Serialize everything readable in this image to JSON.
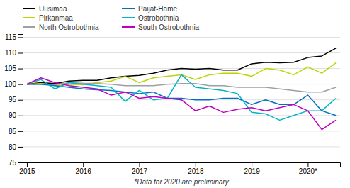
{
  "chart_data": {
    "type": "line",
    "categories": [
      "2015",
      null,
      null,
      null,
      "2016",
      null,
      null,
      null,
      "2017",
      null,
      null,
      null,
      "2018",
      null,
      null,
      null,
      "2019",
      null,
      null,
      null,
      "2020*",
      null,
      null
    ],
    "series": [
      {
        "name": "Uusimaa",
        "color": "#000000",
        "values": [
          100.0,
          100.5,
          100.2,
          101.0,
          101.2,
          101.2,
          102.0,
          102.5,
          102.8,
          103.5,
          104.5,
          105.0,
          104.8,
          105.0,
          104.5,
          104.5,
          106.5,
          107.0,
          106.8,
          107.0,
          108.5,
          109.0,
          111.5
        ]
      },
      {
        "name": "Pirkanmaa",
        "color": "#bcd400",
        "values": [
          100.0,
          100.2,
          99.5,
          100.0,
          99.8,
          100.5,
          101.0,
          102.5,
          100.5,
          102.0,
          102.5,
          103.0,
          101.5,
          103.0,
          103.5,
          103.5,
          102.5,
          105.0,
          104.5,
          103.0,
          105.5,
          103.5,
          106.8
        ]
      },
      {
        "name": "North Ostrobothnia",
        "color": "#a0a0a0",
        "values": [
          100.0,
          100.0,
          99.8,
          100.5,
          100.3,
          100.2,
          100.0,
          99.5,
          99.5,
          99.5,
          100.0,
          100.2,
          100.2,
          99.5,
          99.5,
          99.0,
          99.0,
          99.0,
          98.5,
          98.0,
          97.5,
          97.5,
          99.0
        ]
      },
      {
        "name": "Päijät-Häme",
        "color": "#0070c0",
        "values": [
          100.0,
          100.0,
          99.5,
          99.0,
          98.5,
          98.2,
          98.0,
          97.5,
          97.0,
          97.5,
          95.5,
          95.5,
          95.0,
          95.0,
          95.5,
          95.5,
          93.5,
          95.0,
          93.5,
          93.5,
          96.5,
          91.5,
          90.0
        ]
      },
      {
        "name": "Ostrobothnia",
        "color": "#00b4c8",
        "values": [
          100.0,
          101.5,
          98.5,
          100.5,
          100.0,
          99.5,
          99.0,
          94.5,
          98.0,
          95.0,
          95.5,
          103.0,
          99.0,
          98.5,
          98.0,
          97.0,
          91.0,
          90.5,
          88.5,
          90.0,
          91.5,
          91.5,
          95.5
        ]
      },
      {
        "name": "South Ostrobothnia",
        "color": "#c000c0",
        "values": [
          100.0,
          102.0,
          100.5,
          99.5,
          99.0,
          98.5,
          96.5,
          97.5,
          95.5,
          96.0,
          95.5,
          95.0,
          91.5,
          93.0,
          91.0,
          92.0,
          92.5,
          91.5,
          92.5,
          93.5,
          91.5,
          85.5,
          88.5
        ]
      }
    ],
    "ylim": [
      75,
      116
    ],
    "yticks": [
      75,
      80,
      85,
      90,
      95,
      100,
      105,
      110,
      115
    ],
    "grid": true,
    "legend": "top",
    "annotations": [
      "*Data for 2020 are preliminary"
    ]
  }
}
